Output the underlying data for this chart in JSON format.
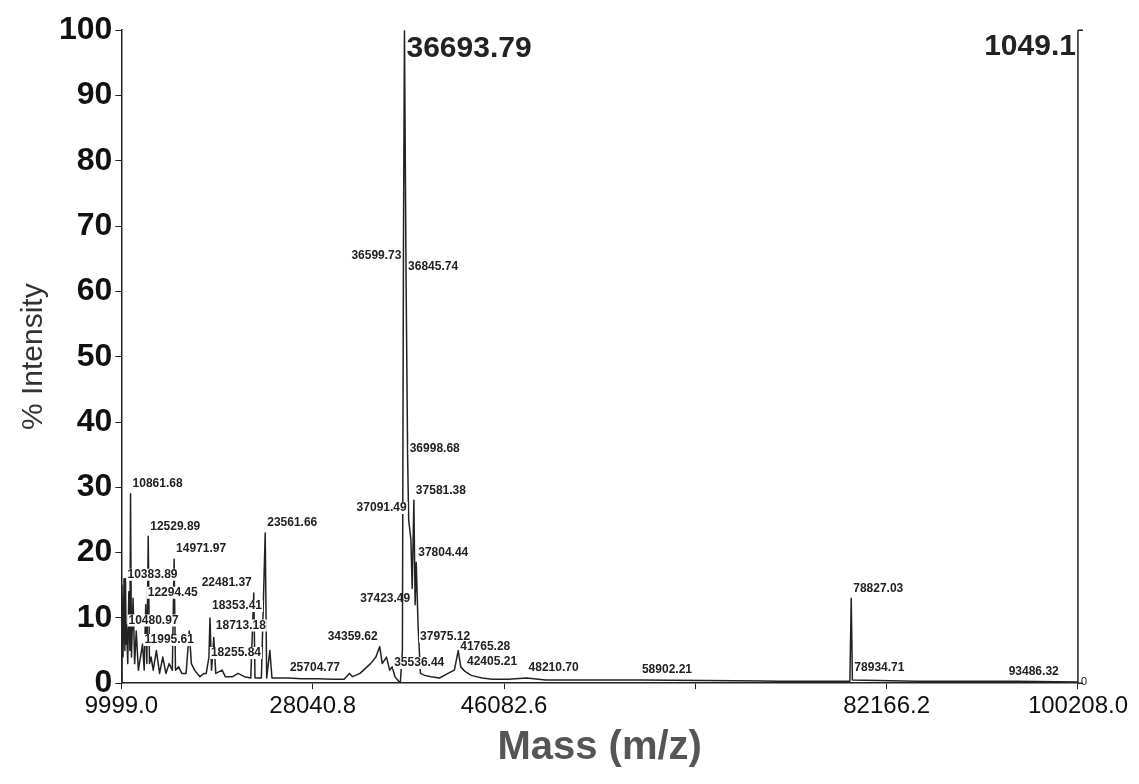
{
  "chart_data": {
    "type": "line",
    "xlabel": "Mass (m/z)",
    "ylabel": "% Intensity",
    "xlim": [
      9999,
      100208
    ],
    "xticks": [
      {
        "value": 9999,
        "label": "9999.0"
      },
      {
        "value": 28040.8,
        "label": "28040.8"
      },
      {
        "value": 46082.6,
        "label": "46082.6"
      },
      {
        "value": 64124.4,
        "label": null
      },
      {
        "value": 82166.2,
        "label": "82166.2"
      },
      {
        "value": 100208,
        "label": "100208.0"
      }
    ],
    "ylim": [
      0,
      100
    ],
    "yticks": [
      0,
      10,
      20,
      30,
      40,
      50,
      60,
      70,
      80,
      90,
      100
    ],
    "grid": false,
    "legend": false,
    "marker": "none",
    "line_style": "solid",
    "series": [
      {
        "color": "#222222",
        "x": [
          9999,
          10050,
          10150,
          10250,
          10330,
          10383.89,
          10450,
          10480.97,
          10600,
          10700,
          10800,
          10861.68,
          10950,
          11100,
          11250,
          11400,
          11600,
          11800,
          11995.61,
          12150,
          12294.45,
          12400,
          12529.89,
          12650,
          12800,
          13000,
          13300,
          13600,
          13900,
          14200,
          14500,
          14800,
          14971.97,
          15100,
          15400,
          15700,
          16100,
          16400,
          16600,
          16900,
          17400,
          17800,
          18000,
          18255.84,
          18353.41,
          18500,
          18713.18,
          18900,
          19500,
          19800,
          20500,
          21000,
          21600,
          22200,
          22481.37,
          22600,
          23200,
          23561.66,
          23700,
          24000,
          24200,
          25000,
          25704.77,
          27000,
          28500,
          30000,
          31000,
          31500,
          31800,
          32500,
          33500,
          34000,
          34359.62,
          34600,
          35000,
          35300,
          35536.44,
          35800,
          36300,
          36500,
          36599.73,
          36693.79,
          36845.74,
          36998.68,
          37091.49,
          37300,
          37423.49,
          37581.38,
          37700,
          37804.44,
          37975.12,
          38200,
          38600,
          39200,
          40000,
          40800,
          41400,
          41765.28,
          42000,
          42405.21,
          43000,
          44000,
          45000,
          46500,
          48210.7,
          50000,
          54000,
          58902.21,
          65000,
          72000,
          78700,
          78827.03,
          78934.71,
          85000,
          93486.32,
          100208
        ],
        "values": [
          0,
          15,
          4,
          16,
          5,
          16,
          6,
          9,
          3,
          14,
          5,
          29,
          4,
          13,
          3,
          8,
          2,
          4,
          6,
          2,
          12,
          3,
          22.5,
          3,
          4,
          2,
          5,
          1.5,
          4,
          1.5,
          3,
          2,
          19,
          2,
          2.5,
          1.5,
          1.5,
          8,
          3,
          2,
          1,
          1.5,
          1.5,
          4,
          10,
          2,
          7,
          1.5,
          2,
          1,
          1,
          1.5,
          1,
          0.8,
          13.8,
          0.8,
          0.8,
          23,
          0.8,
          5,
          0.8,
          0.8,
          0.8,
          0.7,
          0.7,
          0.6,
          0.6,
          1.5,
          1,
          1.5,
          3,
          4,
          5.6,
          3,
          4,
          2,
          2.5,
          1,
          0,
          5,
          67,
          100,
          62,
          34,
          25,
          22,
          14.5,
          28,
          12,
          18.5,
          9,
          1.5,
          1.2,
          1,
          0.8,
          1.5,
          2,
          5,
          2.5,
          1.8,
          1.2,
          0.8,
          0.6,
          0.6,
          0.8,
          0.5,
          0.5,
          0.5,
          0.4,
          0.3,
          0.3,
          13,
          0.5,
          0.3,
          0.3,
          0.2
        ]
      }
    ],
    "annotations": [
      "1049.1",
      "0",
      {
        "text": "36693.79",
        "x": 36693.79,
        "y": 100
      },
      {
        "text": "36599.73",
        "x": 36599.73,
        "y": 67
      },
      {
        "text": "36845.74",
        "x": 36845.74,
        "y": 62
      },
      {
        "text": "36998.68",
        "x": 36998.68,
        "y": 34
      },
      {
        "text": "37581.38",
        "x": 37581.38,
        "y": 28
      },
      {
        "text": "37091.49",
        "x": 37091.49,
        "y": 25
      },
      {
        "text": "37804.44",
        "x": 37804.44,
        "y": 18.5
      },
      {
        "text": "37423.49",
        "x": 37423.49,
        "y": 14.5
      },
      {
        "text": "37975.12",
        "x": 37975.12,
        "y": 9
      },
      {
        "text": "34359.62",
        "x": 34359.62,
        "y": 5.6
      },
      {
        "text": "35536.44",
        "x": 35536.44,
        "y": 2.5
      },
      {
        "text": "41765.28",
        "x": 41765.28,
        "y": 5
      },
      {
        "text": "42405.21",
        "x": 42405.21,
        "y": 1.8
      },
      {
        "text": "48210.70",
        "x": 48210.7,
        "y": 0.8
      },
      {
        "text": "58902.21",
        "x": 58902.21,
        "y": 0.5
      },
      {
        "text": "78827.03",
        "x": 78827.03,
        "y": 13
      },
      {
        "text": "78934.71",
        "x": 78934.71,
        "y": 0.5
      },
      {
        "text": "93486.32",
        "x": 93486.32,
        "y": 0.3
      },
      {
        "text": "25704.77",
        "x": 25704.77,
        "y": 0.8
      },
      {
        "text": "10861.68",
        "x": 10861.68,
        "y": 29
      },
      {
        "text": "12529.89",
        "x": 12529.89,
        "y": 22.5
      },
      {
        "text": "14971.97",
        "x": 14971.97,
        "y": 19
      },
      {
        "text": "23561.66",
        "x": 23561.66,
        "y": 23
      },
      {
        "text": "22481.37",
        "x": 22481.37,
        "y": 13.8
      },
      {
        "text": "10383.89",
        "x": 10383.89,
        "y": 16
      },
      {
        "text": "12294.45",
        "x": 12294.45,
        "y": 12
      },
      {
        "text": "10480.97",
        "x": 10480.97,
        "y": 9
      },
      {
        "text": "11995.61",
        "x": 11995.61,
        "y": 6
      },
      {
        "text": "18353.41",
        "x": 18353.41,
        "y": 10
      },
      {
        "text": "18713.18",
        "x": 18713.18,
        "y": 7
      },
      {
        "text": "18255.84",
        "x": 18255.84,
        "y": 4
      }
    ]
  }
}
